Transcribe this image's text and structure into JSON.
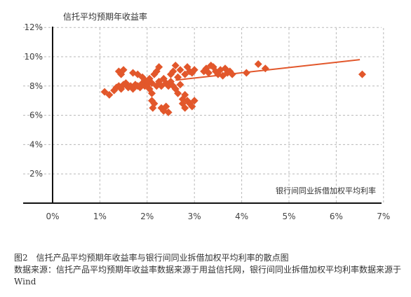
{
  "chart_data": {
    "type": "scatter",
    "title": "信托平均预期年收益率",
    "xlabel": "银行间同业拆借加权平均利率",
    "ylabel": "信托平均预期年收益率",
    "x_ticks": [
      "0%",
      "1%",
      "2%",
      "3%",
      "4%",
      "5%",
      "6%",
      "7%"
    ],
    "y_ticks": [
      "2%",
      "4%",
      "6%",
      "8%",
      "10%",
      "12%"
    ],
    "xlim": [
      -0.6,
      7
    ],
    "ylim": [
      0,
      12.5
    ],
    "grid": true,
    "marker_color": "#e2572b",
    "trendline": {
      "x": [
        2.6,
        6.5
      ],
      "y": [
        8.4,
        9.8
      ]
    },
    "points": [
      {
        "x": 1.1,
        "y": 7.6
      },
      {
        "x": 1.2,
        "y": 7.4
      },
      {
        "x": 1.3,
        "y": 7.7
      },
      {
        "x": 1.35,
        "y": 7.9
      },
      {
        "x": 1.4,
        "y": 8.0
      },
      {
        "x": 1.45,
        "y": 7.8
      },
      {
        "x": 1.5,
        "y": 8.1
      },
      {
        "x": 1.55,
        "y": 8.2
      },
      {
        "x": 1.6,
        "y": 7.9
      },
      {
        "x": 1.65,
        "y": 8.0
      },
      {
        "x": 1.7,
        "y": 7.8
      },
      {
        "x": 1.75,
        "y": 8.1
      },
      {
        "x": 1.8,
        "y": 8.0
      },
      {
        "x": 1.85,
        "y": 7.9
      },
      {
        "x": 1.9,
        "y": 8.2
      },
      {
        "x": 1.95,
        "y": 8.0
      },
      {
        "x": 1.4,
        "y": 9.0
      },
      {
        "x": 1.45,
        "y": 8.8
      },
      {
        "x": 1.5,
        "y": 9.1
      },
      {
        "x": 1.7,
        "y": 8.9
      },
      {
        "x": 1.8,
        "y": 8.8
      },
      {
        "x": 1.9,
        "y": 8.6
      },
      {
        "x": 1.95,
        "y": 8.4
      },
      {
        "x": 2.0,
        "y": 8.1
      },
      {
        "x": 2.0,
        "y": 8.3
      },
      {
        "x": 2.05,
        "y": 7.8
      },
      {
        "x": 2.05,
        "y": 8.5
      },
      {
        "x": 2.1,
        "y": 8.2
      },
      {
        "x": 2.1,
        "y": 7.5
      },
      {
        "x": 2.1,
        "y": 7.0
      },
      {
        "x": 2.12,
        "y": 6.5
      },
      {
        "x": 2.15,
        "y": 6.8
      },
      {
        "x": 2.15,
        "y": 8.8
      },
      {
        "x": 2.2,
        "y": 9.0
      },
      {
        "x": 2.2,
        "y": 8.0
      },
      {
        "x": 2.25,
        "y": 9.3
      },
      {
        "x": 2.25,
        "y": 8.3
      },
      {
        "x": 2.3,
        "y": 8.0
      },
      {
        "x": 2.3,
        "y": 6.5
      },
      {
        "x": 2.35,
        "y": 8.5
      },
      {
        "x": 2.35,
        "y": 6.3
      },
      {
        "x": 2.4,
        "y": 8.2
      },
      {
        "x": 2.4,
        "y": 6.6
      },
      {
        "x": 2.45,
        "y": 8.0
      },
      {
        "x": 2.45,
        "y": 6.2
      },
      {
        "x": 2.5,
        "y": 8.3
      },
      {
        "x": 2.5,
        "y": 8.8
      },
      {
        "x": 2.55,
        "y": 9.0
      },
      {
        "x": 2.55,
        "y": 8.0
      },
      {
        "x": 2.6,
        "y": 9.4
      },
      {
        "x": 2.6,
        "y": 7.8
      },
      {
        "x": 2.65,
        "y": 8.6
      },
      {
        "x": 2.65,
        "y": 7.5
      },
      {
        "x": 2.7,
        "y": 9.1
      },
      {
        "x": 2.7,
        "y": 8.1
      },
      {
        "x": 2.75,
        "y": 7.1
      },
      {
        "x": 2.75,
        "y": 6.8
      },
      {
        "x": 2.8,
        "y": 8.8
      },
      {
        "x": 2.8,
        "y": 7.4
      },
      {
        "x": 2.8,
        "y": 6.5
      },
      {
        "x": 2.85,
        "y": 9.3
      },
      {
        "x": 2.85,
        "y": 7.0
      },
      {
        "x": 2.9,
        "y": 9.0
      },
      {
        "x": 2.9,
        "y": 6.8
      },
      {
        "x": 2.95,
        "y": 8.9
      },
      {
        "x": 2.95,
        "y": 6.6
      },
      {
        "x": 3.0,
        "y": 9.1
      },
      {
        "x": 3.0,
        "y": 7.0
      },
      {
        "x": 3.2,
        "y": 9.0
      },
      {
        "x": 3.25,
        "y": 9.2
      },
      {
        "x": 3.3,
        "y": 8.9
      },
      {
        "x": 3.35,
        "y": 9.4
      },
      {
        "x": 3.4,
        "y": 9.3
      },
      {
        "x": 3.45,
        "y": 9.0
      },
      {
        "x": 3.5,
        "y": 8.8
      },
      {
        "x": 3.55,
        "y": 9.1
      },
      {
        "x": 3.6,
        "y": 8.7
      },
      {
        "x": 3.65,
        "y": 9.2
      },
      {
        "x": 3.7,
        "y": 8.9
      },
      {
        "x": 3.75,
        "y": 9.0
      },
      {
        "x": 3.8,
        "y": 8.8
      },
      {
        "x": 4.1,
        "y": 8.9
      },
      {
        "x": 4.35,
        "y": 9.5
      },
      {
        "x": 4.5,
        "y": 9.2
      },
      {
        "x": 6.55,
        "y": 8.8
      }
    ]
  },
  "caption": {
    "figure": "图2　信托产品平均预期年收益率与银行间同业拆借加权平均利率的散点图",
    "source": "数据来源：信托产品平均预期年收益率数据来源于用益信托网，银行间同业拆借加权平均利率数据来源于Wind"
  }
}
